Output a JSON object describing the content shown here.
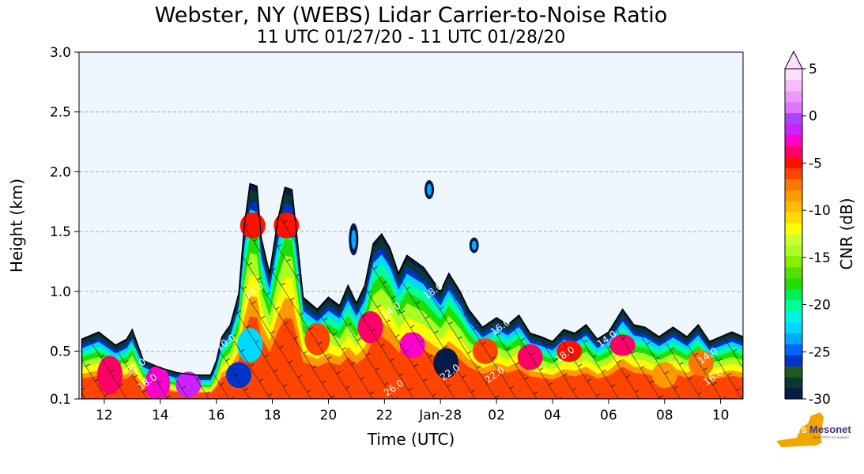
{
  "chart_data": {
    "type": "heatmap",
    "title": "Webster, NY (WEBS) Lidar Carrier-to-Noise Ratio",
    "subtitle": "11 UTC 01/27/20 - 11 UTC 01/28/20",
    "xlabel": "Time (UTC)",
    "ylabel": "Height (km)",
    "x_ticks": [
      "12",
      "14",
      "16",
      "18",
      "20",
      "22",
      "Jan-28",
      "02",
      "04",
      "06",
      "08",
      "10"
    ],
    "x_tick_hours": [
      12,
      14,
      16,
      18,
      20,
      22,
      24,
      26,
      28,
      30,
      32,
      34
    ],
    "xlim_hours": [
      11.1,
      34.8
    ],
    "y_ticks": [
      "0.1",
      "0.5",
      "1.0",
      "1.5",
      "2.0",
      "2.5",
      "3.0"
    ],
    "y_tick_values": [
      0.1,
      0.5,
      1.0,
      1.5,
      2.0,
      2.5,
      3.0
    ],
    "ylim": [
      0.1,
      3.0
    ],
    "grid": "horizontal dashed",
    "background_color": "#eef6fe",
    "colorbar": {
      "label": "CNR (dB)",
      "range": [
        -30,
        5
      ],
      "ticks": [
        "5",
        "0",
        "-5",
        "-10",
        "-15",
        "-20",
        "-25",
        "-30"
      ],
      "tick_values": [
        5,
        0,
        -5,
        -10,
        -15,
        -20,
        -25,
        -30
      ],
      "extend": "max",
      "colors": [
        "#081a4a",
        "#0a3a2e",
        "#1f5d1e",
        "#0033cc",
        "#0066ff",
        "#00aaff",
        "#00d8ff",
        "#00f5e0",
        "#00ff99",
        "#00ee55",
        "#22dd00",
        "#55e000",
        "#88ee00",
        "#aaff22",
        "#ccff33",
        "#ffff00",
        "#ffdd00",
        "#ffbb00",
        "#ff9900",
        "#ff7700",
        "#ff4400",
        "#ff1100",
        "#ff0066",
        "#ff00cc",
        "#cc22ff",
        "#aa44ff",
        "#dd77ff",
        "#ee99ff",
        "#f6bbff",
        "#fde0ff"
      ]
    },
    "cloud_top_profile_km": [
      [
        11.2,
        0.6
      ],
      [
        11.8,
        0.66
      ],
      [
        12.4,
        0.55
      ],
      [
        12.8,
        0.6
      ],
      [
        13.0,
        0.68
      ],
      [
        13.4,
        0.42
      ],
      [
        14.0,
        0.36
      ],
      [
        14.6,
        0.32
      ],
      [
        15.2,
        0.3
      ],
      [
        15.8,
        0.3
      ],
      [
        16.0,
        0.42
      ],
      [
        16.2,
        0.62
      ],
      [
        16.5,
        0.72
      ],
      [
        16.8,
        0.98
      ],
      [
        17.0,
        1.55
      ],
      [
        17.2,
        1.9
      ],
      [
        17.45,
        1.88
      ],
      [
        17.6,
        1.45
      ],
      [
        17.9,
        1.15
      ],
      [
        18.2,
        1.6
      ],
      [
        18.45,
        1.87
      ],
      [
        18.7,
        1.85
      ],
      [
        18.9,
        1.4
      ],
      [
        19.1,
        0.95
      ],
      [
        19.6,
        0.85
      ],
      [
        20.0,
        0.95
      ],
      [
        20.4,
        0.88
      ],
      [
        20.7,
        1.05
      ],
      [
        21.0,
        0.9
      ],
      [
        21.3,
        1.05
      ],
      [
        21.6,
        1.4
      ],
      [
        21.9,
        1.48
      ],
      [
        22.2,
        1.36
      ],
      [
        22.5,
        1.15
      ],
      [
        22.8,
        1.3
      ],
      [
        23.1,
        1.25
      ],
      [
        23.4,
        1.2
      ],
      [
        23.7,
        1.1
      ],
      [
        24.0,
        1.0
      ],
      [
        24.3,
        1.15
      ],
      [
        24.7,
        1.0
      ],
      [
        25.0,
        0.85
      ],
      [
        25.5,
        0.7
      ],
      [
        26.0,
        0.78
      ],
      [
        26.4,
        0.72
      ],
      [
        26.8,
        0.8
      ],
      [
        27.2,
        0.65
      ],
      [
        27.6,
        0.62
      ],
      [
        28.0,
        0.58
      ],
      [
        28.4,
        0.68
      ],
      [
        28.8,
        0.65
      ],
      [
        29.2,
        0.72
      ],
      [
        29.6,
        0.6
      ],
      [
        30.0,
        0.66
      ],
      [
        30.5,
        0.85
      ],
      [
        30.9,
        0.72
      ],
      [
        31.3,
        0.7
      ],
      [
        31.8,
        0.62
      ],
      [
        32.3,
        0.7
      ],
      [
        32.8,
        0.62
      ],
      [
        33.2,
        0.72
      ],
      [
        33.6,
        0.58
      ],
      [
        34.0,
        0.62
      ],
      [
        34.4,
        0.66
      ],
      [
        34.8,
        0.62
      ]
    ],
    "isolated_echoes_km": [
      {
        "x_hours": 23.6,
        "bottom": 1.77,
        "top": 1.93
      },
      {
        "x_hours": 20.9,
        "bottom": 1.3,
        "top": 1.57
      },
      {
        "x_hours": 25.2,
        "bottom": 1.32,
        "top": 1.45
      }
    ],
    "contour_labels": [
      {
        "text": "14.0",
        "x_hours": 17.4,
        "y_km": 0.98
      },
      {
        "text": "22.0",
        "x_hours": 13.2,
        "y_km": 0.35
      },
      {
        "text": "18.0",
        "x_hours": 13.6,
        "y_km": 0.22
      },
      {
        "text": "26.0",
        "x_hours": 22.4,
        "y_km": 0.17
      },
      {
        "text": "22.0",
        "x_hours": 24.4,
        "y_km": 0.3
      },
      {
        "text": "18.0",
        "x_hours": 23.8,
        "y_km": 0.98
      },
      {
        "text": "16.0",
        "x_hours": 26.2,
        "y_km": 0.68
      },
      {
        "text": "22.0",
        "x_hours": 26.0,
        "y_km": 0.28
      },
      {
        "text": "14.0",
        "x_hours": 22.3,
        "y_km": 0.82
      },
      {
        "text": "18.0",
        "x_hours": 28.5,
        "y_km": 0.45
      },
      {
        "text": "14.0",
        "x_hours": 30.0,
        "y_km": 0.58
      },
      {
        "text": "14.0",
        "x_hours": 33.6,
        "y_km": 0.44
      },
      {
        "text": "16.0",
        "x_hours": 33.8,
        "y_km": 0.26
      },
      {
        "text": "10.0",
        "x_hours": 16.4,
        "y_km": 0.55
      }
    ],
    "logo": {
      "label_prefix": "NYS",
      "label_main": "Mesonet",
      "sublabel": "UNIVERSITY AT ALBANY"
    }
  }
}
